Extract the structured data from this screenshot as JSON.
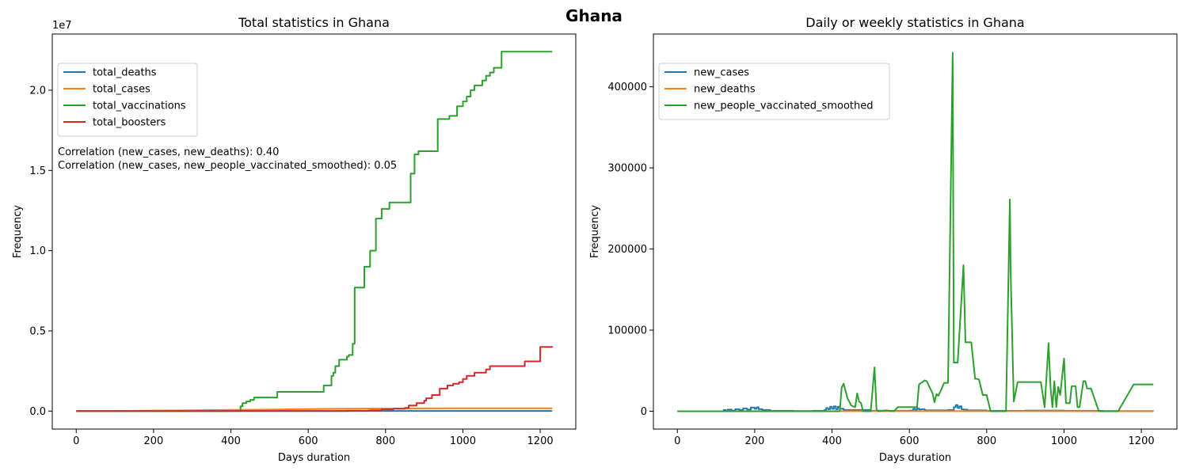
{
  "figure_title": "Ghana",
  "chart_data": [
    {
      "type": "line",
      "title": "Total statistics in Ghana",
      "xlabel": "Days duration",
      "ylabel": "Frequency",
      "offset_label": "1e7",
      "xlim": [
        -62,
        1292
      ],
      "ylim": [
        -1.12,
        23.5
      ],
      "xticks": [
        0,
        200,
        400,
        600,
        800,
        1000,
        1200
      ],
      "xtick_labels": [
        "0",
        "200",
        "400",
        "600",
        "800",
        "1000",
        "1200"
      ],
      "yticks": [
        0,
        5,
        10,
        15,
        20
      ],
      "ytick_labels": [
        "0.0",
        "0.5",
        "1.0",
        "1.5",
        "2.0"
      ],
      "y_unit_note": "values in units of 1e6 (axis shows x1e7)",
      "legend_position": "upper-left",
      "annotations": [
        "Correlation (new_cases, new_deaths): 0.40",
        "Correlation (new_cases, new_people_vaccinated_smoothed): 0.05"
      ],
      "series": [
        {
          "name": "total_deaths",
          "color": "#1f77b4",
          "x": [
            0,
            100,
            200,
            400,
            600,
            800,
            1000,
            1231
          ],
          "y": [
            0,
            0.001,
            0.003,
            0.005,
            0.007,
            0.009,
            0.0095,
            0.0095
          ]
        },
        {
          "name": "total_cases",
          "color": "#ff7f0e",
          "x": [
            0,
            100,
            200,
            300,
            400,
            500,
            600,
            700,
            800,
            900,
            1000,
            1231
          ],
          "y": [
            0,
            0.005,
            0.035,
            0.05,
            0.08,
            0.095,
            0.13,
            0.155,
            0.165,
            0.17,
            0.172,
            0.172
          ]
        },
        {
          "name": "total_vaccinations",
          "color": "#2ca02c",
          "x": [
            0,
            420,
            425,
            430,
            440,
            450,
            460,
            470,
            510,
            520,
            620,
            640,
            650,
            660,
            665,
            670,
            680,
            700,
            705,
            710,
            715,
            720,
            740,
            745,
            760,
            775,
            790,
            810,
            860,
            865,
            875,
            885,
            900,
            930,
            935,
            965,
            970,
            985,
            1000,
            1010,
            1020,
            1030,
            1050,
            1060,
            1070,
            1080,
            1100,
            1110,
            1231
          ],
          "y": [
            0,
            0,
            0.3,
            0.5,
            0.6,
            0.7,
            0.85,
            0.85,
            0.85,
            1.2,
            1.2,
            1.6,
            1.6,
            2.2,
            2.4,
            2.8,
            3.2,
            3.4,
            3.5,
            3.5,
            4.2,
            7.7,
            7.7,
            9.0,
            10.0,
            12.0,
            12.6,
            13.0,
            13.0,
            14.8,
            16.0,
            16.2,
            16.2,
            16.2,
            18.2,
            18.4,
            18.4,
            19.0,
            19.3,
            19.6,
            20.0,
            20.3,
            20.6,
            20.9,
            21.1,
            21.4,
            22.4,
            22.4,
            22.4
          ],
          "step": true
        },
        {
          "name": "total_boosters",
          "color": "#d62728",
          "x": [
            0,
            100,
            200,
            400,
            600,
            700,
            760,
            790,
            820,
            850,
            860,
            880,
            900,
            905,
            920,
            940,
            960,
            975,
            990,
            1000,
            1010,
            1030,
            1060,
            1070,
            1100,
            1150,
            1160,
            1190,
            1200,
            1210,
            1231
          ],
          "y": [
            0,
            0.005,
            0.005,
            0.01,
            0.01,
            0.02,
            0.05,
            0.1,
            0.15,
            0.2,
            0.35,
            0.5,
            0.65,
            0.8,
            1.0,
            1.4,
            1.6,
            1.7,
            1.8,
            2.0,
            2.2,
            2.4,
            2.6,
            2.8,
            2.8,
            2.8,
            3.1,
            3.1,
            4.0,
            4.0,
            4.05
          ],
          "step": true
        }
      ]
    },
    {
      "type": "line",
      "title": "Daily or weekly statistics in Ghana",
      "xlabel": "Days duration",
      "ylabel": "Frequency",
      "xlim": [
        -62,
        1292
      ],
      "ylim": [
        -22000,
        465000
      ],
      "xticks": [
        0,
        200,
        400,
        600,
        800,
        1000,
        1200
      ],
      "xtick_labels": [
        "0",
        "200",
        "400",
        "600",
        "800",
        "1000",
        "1200"
      ],
      "yticks": [
        0,
        100000,
        200000,
        300000,
        400000
      ],
      "ytick_labels": [
        "0",
        "100000",
        "200000",
        "300000",
        "400000"
      ],
      "legend_position": "upper-left",
      "series": [
        {
          "name": "new_cases",
          "color": "#1f77b4",
          "x": [
            0,
            100,
            120,
            125,
            130,
            140,
            150,
            160,
            170,
            180,
            190,
            200,
            205,
            210,
            220,
            240,
            300,
            350,
            380,
            385,
            390,
            395,
            400,
            405,
            410,
            415,
            420,
            430,
            500,
            600,
            610,
            615,
            620,
            625,
            630,
            640,
            700,
            715,
            720,
            725,
            730,
            735,
            740,
            750,
            800,
            900,
            1000,
            1100,
            1231
          ],
          "y": [
            0,
            0,
            1500,
            500,
            2000,
            800,
            2500,
            1500,
            3500,
            2000,
            4500,
            3000,
            4800,
            2500,
            1500,
            500,
            300,
            500,
            1500,
            4000,
            2500,
            5500,
            3000,
            6000,
            2500,
            5500,
            3000,
            1500,
            500,
            800,
            3000,
            1500,
            3500,
            2000,
            2500,
            1000,
            1500,
            5000,
            7500,
            4000,
            6000,
            2500,
            2000,
            1000,
            500,
            800,
            500,
            300,
            200
          ],
          "step": true
        },
        {
          "name": "new_deaths",
          "color": "#ff7f0e",
          "x": [
            0,
            200,
            400,
            600,
            800,
            1000,
            1231
          ],
          "y": [
            0,
            30,
            40,
            30,
            20,
            10,
            5
          ]
        },
        {
          "name": "new_people_vaccinated_smoothed",
          "color": "#2ca02c",
          "x": [
            0,
            420,
            425,
            430,
            435,
            440,
            450,
            460,
            465,
            470,
            475,
            480,
            500,
            510,
            515,
            520,
            540,
            560,
            570,
            580,
            600,
            620,
            625,
            640,
            645,
            660,
            665,
            670,
            675,
            680,
            690,
            700,
            712,
            715,
            720,
            725,
            740,
            745,
            750,
            760,
            770,
            775,
            780,
            790,
            795,
            800,
            810,
            820,
            850,
            860,
            862,
            870,
            880,
            885,
            900,
            940,
            950,
            960,
            965,
            970,
            975,
            980,
            985,
            990,
            1000,
            1005,
            1010,
            1015,
            1020,
            1030,
            1035,
            1040,
            1050,
            1055,
            1060,
            1065,
            1070,
            1090,
            1095,
            1100,
            1140,
            1180,
            1185,
            1231
          ],
          "y": [
            0,
            0,
            29000,
            34000,
            25000,
            16000,
            7000,
            5000,
            22000,
            12000,
            10000,
            0,
            0,
            54000,
            2000,
            0,
            1000,
            0,
            5000,
            5000,
            5000,
            5000,
            33000,
            38000,
            37000,
            22000,
            11000,
            21000,
            19000,
            24000,
            35000,
            35000,
            442000,
            60000,
            60000,
            60000,
            180000,
            85000,
            85000,
            85000,
            40000,
            40000,
            39000,
            20000,
            20000,
            20000,
            0,
            0,
            0,
            261000,
            170000,
            12000,
            36000,
            36000,
            36000,
            36000,
            5000,
            84000,
            30000,
            5000,
            37000,
            5000,
            30000,
            20000,
            65000,
            10000,
            10000,
            10000,
            31000,
            31000,
            5000,
            5000,
            37000,
            37000,
            28000,
            28000,
            28000,
            0,
            0,
            0,
            0,
            33000,
            33000,
            33000
          ]
        }
      ]
    }
  ]
}
